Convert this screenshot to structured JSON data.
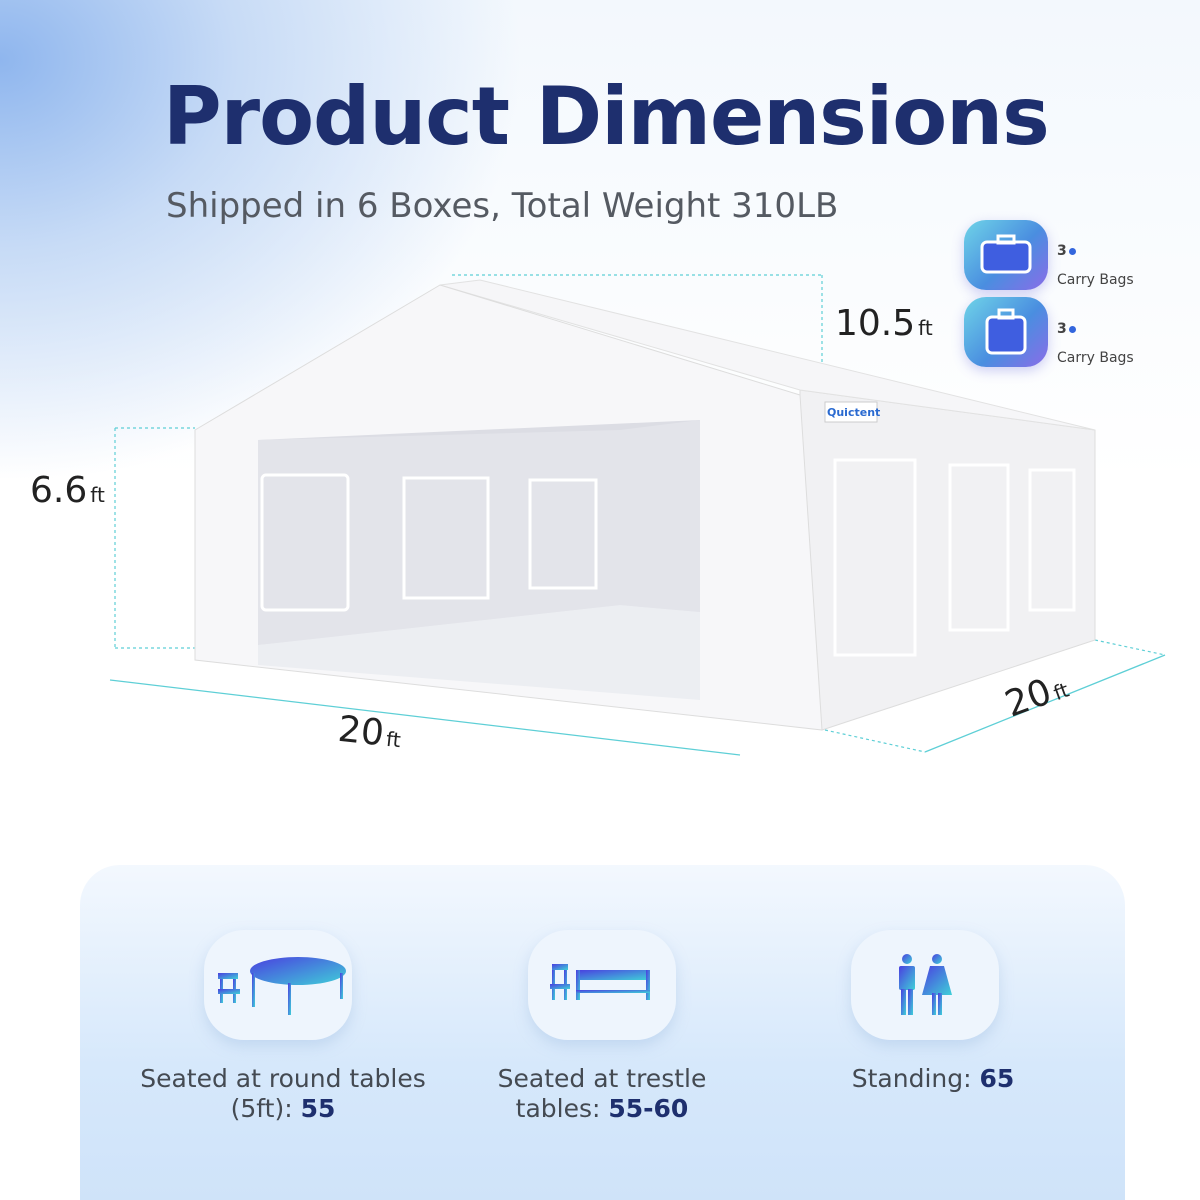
{
  "header": {
    "title": "Product Dimensions",
    "subtitle": "Shipped in 6 Boxes, Total Weight 310LB"
  },
  "dimensions": {
    "side_height": {
      "value": "6.6",
      "unit": "ft"
    },
    "peak_height": {
      "value": "10.5",
      "unit": "ft"
    },
    "width": {
      "value": "20",
      "unit": "ft"
    },
    "depth": {
      "value": "20",
      "unit": "ft"
    }
  },
  "brand_logo": "Quictent",
  "carry_bags": [
    {
      "count": "3",
      "label": "Carry Bags",
      "icon": "duffel-bag-icon"
    },
    {
      "count": "3",
      "label": "Carry Bags",
      "icon": "suitcase-icon"
    }
  ],
  "capacity": [
    {
      "icon": "round-table-chair-icon",
      "text": "Seated at round tables (5ft): ",
      "value": "55"
    },
    {
      "icon": "trestle-table-chair-icon",
      "text": "Seated at trestle tables: ",
      "value": "55-60"
    },
    {
      "icon": "standing-people-icon",
      "text": "Standing: ",
      "value": "65"
    }
  ],
  "colors": {
    "title": "#1e2f6e",
    "accent_start": "#4a3fe0",
    "accent_end": "#3fd0d8"
  }
}
